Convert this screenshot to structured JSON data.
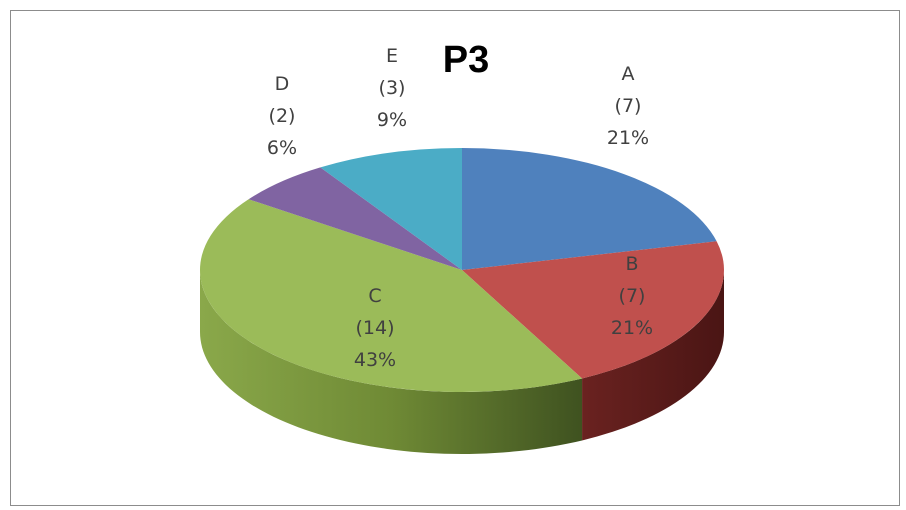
{
  "chart_data": {
    "type": "pie",
    "title": "P3",
    "three_d": true,
    "legend": "none",
    "slices": [
      {
        "label": "A",
        "count": "(7)",
        "percent": "21%",
        "value": 7,
        "color": "#4f81bd"
      },
      {
        "label": "B",
        "count": "(7)",
        "percent": "21%",
        "value": 7,
        "color": "#c0504d"
      },
      {
        "label": "C",
        "count": "(14)",
        "percent": "43%",
        "value": 14,
        "color": "#9bbb59"
      },
      {
        "label": "D",
        "count": "(2)",
        "percent": "6%",
        "value": 2,
        "color": "#8064a2"
      },
      {
        "label": "E",
        "count": "(3)",
        "percent": "9%",
        "value": 3,
        "color": "#4bacc6"
      }
    ]
  }
}
